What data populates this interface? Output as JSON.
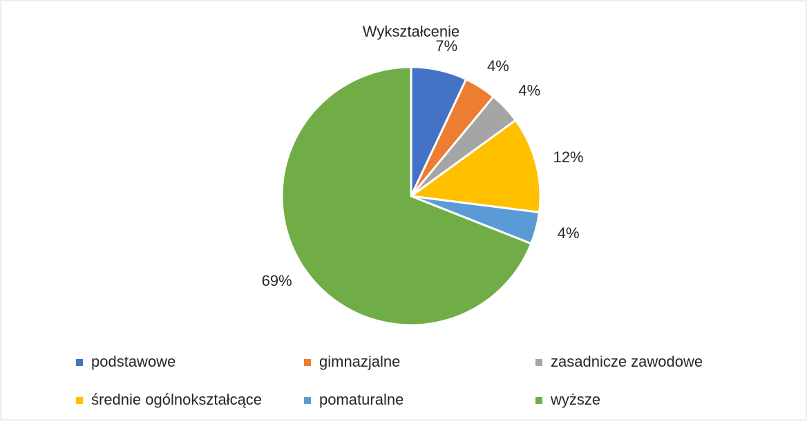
{
  "chart_data": {
    "type": "pie",
    "title": "Wykształcenie",
    "categories": [
      "podstawowe",
      "gimnazjalne",
      "zasadnicze zawodowe",
      "średnie ogólnokształcące",
      "pomaturalne",
      "wyższe"
    ],
    "values": [
      7,
      4,
      4,
      12,
      4,
      69
    ],
    "value_labels": [
      "7%",
      "4%",
      "4%",
      "12%",
      "4%",
      "69%"
    ],
    "colors": [
      "#4472c4",
      "#ed7d31",
      "#a5a5a5",
      "#ffc000",
      "#5b9bd5",
      "#70ad47"
    ],
    "legend": "bottom"
  }
}
